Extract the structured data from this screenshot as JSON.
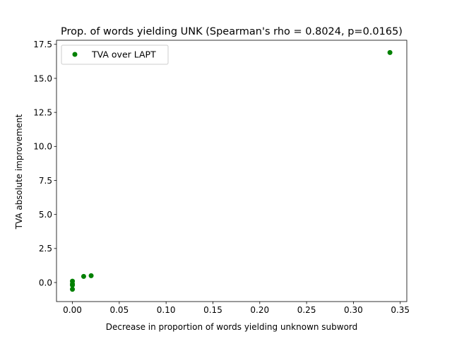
{
  "chart_data": {
    "type": "scatter",
    "title": "Prop. of words yielding UNK (Spearman's rho = 0.8024, p=0.0165)",
    "xlabel": "Decrease in proportion of words yielding unknown subword",
    "ylabel": "TVA absolute improvement",
    "xlim": [
      -0.017,
      0.357
    ],
    "ylim": [
      -1.4,
      17.8
    ],
    "x_ticks": [
      0.0,
      0.05,
      0.1,
      0.15,
      0.2,
      0.25,
      0.3,
      0.35
    ],
    "x_tick_labels": [
      "0.00",
      "0.05",
      "0.10",
      "0.15",
      "0.20",
      "0.25",
      "0.30",
      "0.35"
    ],
    "y_ticks": [
      0.0,
      2.5,
      5.0,
      7.5,
      10.0,
      12.5,
      15.0,
      17.5
    ],
    "y_tick_labels": [
      "0.0",
      "2.5",
      "5.0",
      "7.5",
      "10.0",
      "12.5",
      "15.0",
      "17.5"
    ],
    "grid": false,
    "legend_position": "top-left",
    "series": [
      {
        "name": "TVA over LAPT",
        "color": "#008000",
        "points": [
          {
            "x": 0.0,
            "y": 0.1
          },
          {
            "x": 0.0,
            "y": -0.1
          },
          {
            "x": 0.0,
            "y": -0.2
          },
          {
            "x": 0.0,
            "y": -0.5
          },
          {
            "x": 0.012,
            "y": 0.45
          },
          {
            "x": 0.02,
            "y": 0.5
          },
          {
            "x": 0.339,
            "y": 16.9
          }
        ]
      }
    ]
  }
}
